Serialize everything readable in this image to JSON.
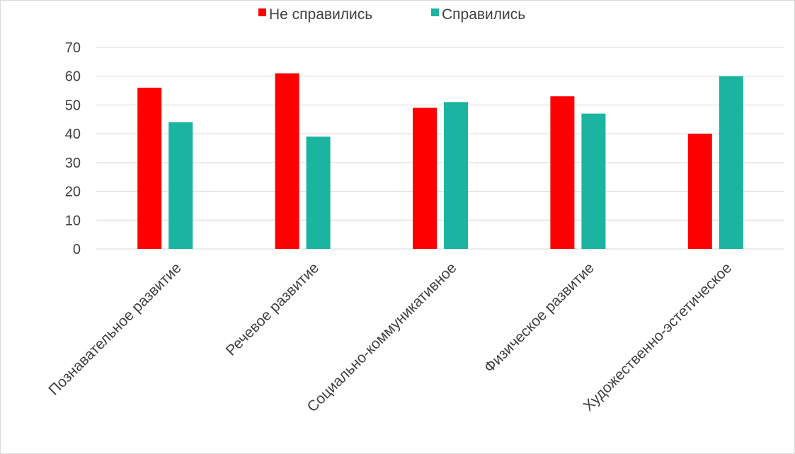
{
  "chart_data": {
    "type": "bar",
    "categories": [
      "Познавательное развитие",
      "Речевое развитие",
      "Социально-коммуникативное",
      "Физическое развитие",
      "Художественно-эстетическое"
    ],
    "series": [
      {
        "name": "Не справились",
        "color": "#ff0000",
        "values": [
          56,
          61,
          49,
          53,
          40
        ]
      },
      {
        "name": "Справились",
        "color": "#1ab4a0",
        "values": [
          44,
          39,
          51,
          47,
          60
        ]
      }
    ],
    "ylim": [
      0,
      70
    ],
    "yticks": [
      0,
      10,
      20,
      30,
      40,
      50,
      60,
      70
    ],
    "grid": true,
    "legend_position": "top",
    "title": "",
    "xlabel": "",
    "ylabel": ""
  }
}
